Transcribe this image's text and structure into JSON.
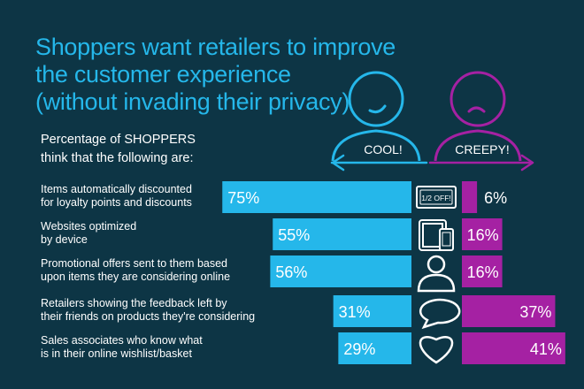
{
  "title_lines": [
    "Shoppers want retailers to improve",
    "the customer experience",
    "(without invading their privacy)"
  ],
  "subhead_lines": [
    "Percentage of SHOPPERS",
    "think that the following are:"
  ],
  "colors": {
    "background": "#0d3545",
    "cool": "#25b7ea",
    "creepy": "#a521a3",
    "title": "#25b7ea",
    "icon": "#ffffff"
  },
  "icons": [
    "coupon-icon",
    "devices-icon",
    "person-icon",
    "speech-bubble-icon",
    "heart-icon"
  ],
  "chart_data": {
    "type": "bar",
    "categories": [
      [
        "Items automatically discounted",
        "for loyalty points and discounts"
      ],
      [
        "Websites optimized",
        "by device"
      ],
      [
        "Promotional offers sent to them based",
        "upon items they are considering online"
      ],
      [
        "Retailers showing the feedback left by",
        "their friends on products they're considering"
      ],
      [
        "Sales associates who know what",
        "is in their online wishlist/basket"
      ]
    ],
    "series": [
      {
        "name": "COOL!",
        "values": [
          75,
          55,
          56,
          31,
          29
        ],
        "labels": [
          "75%",
          "55%",
          "56%",
          "31%",
          "29%"
        ]
      },
      {
        "name": "CREEPY!",
        "values": [
          6,
          16,
          16,
          37,
          41
        ],
        "labels": [
          "6%",
          "16%",
          "16%",
          "37%",
          "41%"
        ]
      }
    ],
    "coupon_text": "1/2 OFF!",
    "legend_placement": "top-right, over diverging arrow",
    "ylim": [
      0,
      100
    ]
  }
}
